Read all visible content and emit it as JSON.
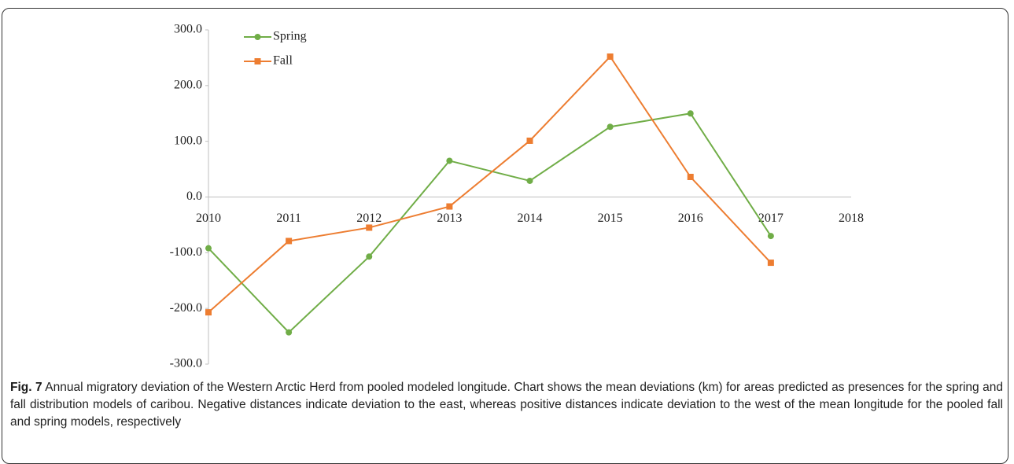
{
  "chart_data": {
    "type": "line",
    "categories": [
      "2010",
      "2011",
      "2012",
      "2013",
      "2014",
      "2015",
      "2016",
      "2017",
      "2018"
    ],
    "series": [
      {
        "name": "Spring",
        "color": "#70ad47",
        "marker": "circle",
        "values": [
          -92,
          -243,
          -107,
          65,
          29,
          126,
          150,
          -70,
          null
        ]
      },
      {
        "name": "Fall",
        "color": "#ed7d31",
        "marker": "square",
        "values": [
          -207,
          -79,
          -55,
          -17,
          101,
          252,
          36,
          -118,
          null
        ]
      }
    ],
    "ylim": [
      -300,
      300
    ],
    "yticks": [
      {
        "value": -300,
        "label": "-300.0"
      },
      {
        "value": -200,
        "label": "-200.0"
      },
      {
        "value": -100,
        "label": "-100.0"
      },
      {
        "value": 0,
        "label": "0.0"
      },
      {
        "value": 100,
        "label": "100.0"
      },
      {
        "value": 200,
        "label": "200.0"
      },
      {
        "value": 300,
        "label": "300.0"
      }
    ],
    "legend": "upper left",
    "grid": false
  },
  "caption": {
    "label": "Fig. 7",
    "text": "Annual migratory deviation of the Western Arctic Herd from pooled modeled longitude. Chart shows the mean deviations (km) for areas predicted as presences for the spring and fall distribution models of caribou. Negative distances indicate deviation to the east, whereas positive distances indicate deviation to the west of the mean longitude for the pooled fall and spring models, respectively"
  }
}
